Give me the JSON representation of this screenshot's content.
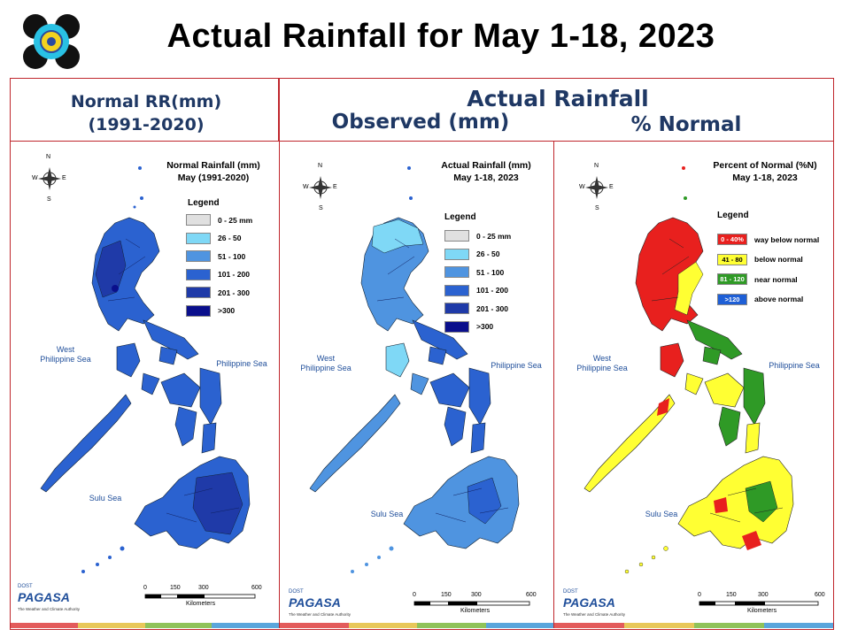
{
  "title": "Actual Rainfall for May 1-18, 2023",
  "headers": {
    "normal_line1": "Normal RR(mm)",
    "normal_line2": "(1991-2020)",
    "actual": "Actual Rainfall",
    "observed": "Observed (mm)",
    "percent": "% Normal"
  },
  "panels": [
    {
      "id": "normal",
      "title_line1": "Normal Rainfall (mm)",
      "title_line2": "May (1991-2020)",
      "legend_title": "Legend",
      "legend": [
        {
          "label": "0 - 25 mm",
          "color": "#e0e0e0"
        },
        {
          "label": "26 - 50",
          "color": "#7fd8f6"
        },
        {
          "label": "51 - 100",
          "color": "#4f94e0"
        },
        {
          "label": "101 - 200",
          "color": "#2b62d0"
        },
        {
          "label": "201 - 300",
          "color": "#1f3aa8"
        },
        {
          "label": ">300",
          "color": "#0a0f8c"
        }
      ]
    },
    {
      "id": "observed",
      "title_line1": "Actual Rainfall (mm)",
      "title_line2": "May 1-18, 2023",
      "legend_title": "Legend",
      "legend": [
        {
          "label": "0 - 25 mm",
          "color": "#e0e0e0"
        },
        {
          "label": "26 - 50",
          "color": "#7fd8f6"
        },
        {
          "label": "51 - 100",
          "color": "#4f94e0"
        },
        {
          "label": "101 - 200",
          "color": "#2b62d0"
        },
        {
          "label": "201 - 300",
          "color": "#1f3aa8"
        },
        {
          "label": ">300",
          "color": "#0a0f8c"
        }
      ]
    },
    {
      "id": "percent",
      "title_line1": "Percent of Normal (%N)",
      "title_line2": "May 1-18, 2023",
      "legend_title": "Legend",
      "legend": [
        {
          "range": "0 - 40%",
          "label": "way below normal",
          "color": "#e8201e"
        },
        {
          "range": "41 - 80",
          "label": "below normal",
          "color": "#ffff33"
        },
        {
          "range": "81 - 120",
          "label": "near normal",
          "color": "#2f9a26"
        },
        {
          "range": ">120",
          "label": "above normal",
          "color": "#1e5fd6"
        }
      ]
    }
  ],
  "sea_labels": {
    "west_line1": "West",
    "west_line2": "Philippine Sea",
    "philippine_sea": "Philippine Sea",
    "sulu_sea": "Sulu Sea"
  },
  "compass": {
    "n": "N",
    "s": "S",
    "e": "E",
    "w": "W"
  },
  "scale": {
    "ticks": [
      "0",
      "150",
      "300",
      "600"
    ],
    "unit": "Kilometers"
  },
  "pagasa": {
    "brand": "PAGASA",
    "dost": "DOST",
    "tagline": "The Weather and Climate Authority"
  },
  "colors": {
    "frame": "#c0272d",
    "header_text": "#1f3864",
    "stripe": [
      "#e35b5b",
      "#e8c85a",
      "#8fc35a",
      "#5aa6dc"
    ]
  }
}
